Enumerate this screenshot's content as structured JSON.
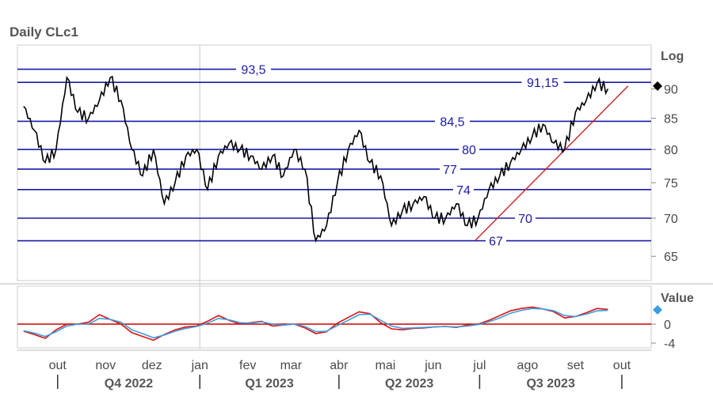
{
  "title": "Daily CLc1",
  "colors": {
    "price": "#000000",
    "level_line": "#1a1aa8",
    "trendline": "#cc2222",
    "osc_red": "#dd1111",
    "osc_blue": "#3a9de0",
    "zero_line": "#cc0000",
    "marker_price": "#000000",
    "marker_osc": "#3a9de0"
  },
  "chart_data": [
    {
      "type": "line",
      "scale": "log",
      "scale_label": "Log",
      "current_marker": 90.5,
      "ylim": [
        62,
        98
      ],
      "y_ticks": [
        "65",
        "70",
        "75",
        "80",
        "85",
        "90"
      ],
      "y_tick_values": [
        65,
        70,
        75,
        80,
        85,
        90
      ],
      "levels": [
        {
          "label": "93,5",
          "value": 93.5
        },
        {
          "label": "91,15",
          "value": 91.15
        },
        {
          "label": "84,5",
          "value": 84.5
        },
        {
          "label": "80",
          "value": 80
        },
        {
          "label": "77",
          "value": 77
        },
        {
          "label": "74",
          "value": 74
        },
        {
          "label": "70",
          "value": 70
        },
        {
          "label": "67",
          "value": 67
        }
      ],
      "trendline": [
        {
          "date": "2023-06-28",
          "value": 67
        },
        {
          "date": "2023-10-05",
          "value": 90.5
        }
      ],
      "series": [
        {
          "dates": [
            "2022-09-09",
            "2022-09-16",
            "2022-09-23",
            "2022-09-30",
            "2022-10-07",
            "2022-10-14",
            "2022-10-21",
            "2022-10-28",
            "2022-11-04",
            "2022-11-11",
            "2022-11-18",
            "2022-11-25",
            "2022-12-02",
            "2022-12-09",
            "2022-12-16",
            "2022-12-23",
            "2022-12-30",
            "2023-01-06",
            "2023-01-13",
            "2023-01-20",
            "2023-01-27",
            "2023-02-03",
            "2023-02-10",
            "2023-02-17",
            "2023-02-24",
            "2023-03-03",
            "2023-03-10",
            "2023-03-17",
            "2023-03-24",
            "2023-03-31",
            "2023-04-07",
            "2023-04-14",
            "2023-04-21",
            "2023-04-28",
            "2023-05-05",
            "2023-05-12",
            "2023-05-19",
            "2023-05-26",
            "2023-06-02",
            "2023-06-09",
            "2023-06-16",
            "2023-06-23",
            "2023-06-30",
            "2023-07-07",
            "2023-07-14",
            "2023-07-21",
            "2023-07-28",
            "2023-08-04",
            "2023-08-11",
            "2023-08-18",
            "2023-08-25",
            "2023-09-01",
            "2023-09-08",
            "2023-09-15",
            "2023-09-22"
          ],
          "values": [
            87,
            83,
            78,
            80,
            92,
            86,
            85,
            88,
            92,
            88,
            80,
            76,
            80,
            72,
            75,
            79,
            80,
            74,
            79,
            81,
            80,
            79,
            77,
            79,
            76,
            80,
            77,
            67,
            69,
            75,
            80,
            83,
            78,
            76,
            69,
            71,
            72,
            73,
            70,
            70,
            72,
            69,
            70,
            74,
            76,
            78,
            80,
            82,
            84,
            81,
            80,
            86,
            88,
            91,
            90
          ]
        }
      ]
    },
    {
      "type": "line",
      "scale_label": "Value",
      "ylim": [
        -5,
        8
      ],
      "y_ticks": [
        "0",
        "-4"
      ],
      "y_tick_values": [
        0,
        -4
      ],
      "zero_line": 0,
      "current_marker": 3,
      "series": [
        {
          "values": [
            -1.5,
            -2.2,
            -3,
            -1.2,
            0,
            0,
            0.4,
            2,
            1,
            0,
            -1.8,
            -2.6,
            -3.4,
            -2.2,
            -1.2,
            -0.6,
            -0.4,
            0.6,
            1.8,
            0.8,
            0,
            0.3,
            0.6,
            -0.4,
            -0.2,
            0,
            -0.8,
            -2,
            -1.6,
            0.2,
            1.4,
            2.6,
            2.2,
            0.3,
            -1,
            -1.2,
            -0.9,
            -0.8,
            -0.6,
            -0.5,
            -0.7,
            -0.2,
            0,
            0.8,
            1.8,
            2.8,
            3.3,
            3.6,
            3.2,
            2.6,
            1.3,
            1.6,
            2.4,
            3.3,
            3.1
          ]
        },
        {
          "values": [
            -1.4,
            -1.9,
            -2.6,
            -1.6,
            -0.4,
            0,
            0,
            1.2,
            1,
            0.4,
            -1.2,
            -2,
            -2.9,
            -2.3,
            -1.5,
            -0.9,
            -0.5,
            0.2,
            1.2,
            0.9,
            0.3,
            0.2,
            0.5,
            0,
            -0.2,
            0,
            -0.5,
            -1.6,
            -1.5,
            -0.3,
            0.8,
            2,
            2.1,
            0.8,
            -0.4,
            -0.9,
            -0.8,
            -0.7,
            -0.6,
            -0.5,
            -0.6,
            -0.4,
            -0.1,
            0.5,
            1.3,
            2.3,
            2.9,
            3.3,
            3.2,
            2.8,
            1.8,
            1.6,
            2.1,
            2.8,
            2.9
          ]
        }
      ]
    }
  ],
  "x_axis": {
    "months": [
      {
        "label": "out",
        "date": "2022-10-01"
      },
      {
        "label": "nov",
        "date": "2022-11-01"
      },
      {
        "label": "dez",
        "date": "2022-12-01"
      },
      {
        "label": "jan",
        "date": "2023-01-01"
      },
      {
        "label": "fev",
        "date": "2023-02-01"
      },
      {
        "label": "mar",
        "date": "2023-03-01"
      },
      {
        "label": "abr",
        "date": "2023-04-01"
      },
      {
        "label": "mai",
        "date": "2023-05-01"
      },
      {
        "label": "jun",
        "date": "2023-06-01"
      },
      {
        "label": "jul",
        "date": "2023-07-01"
      },
      {
        "label": "ago",
        "date": "2023-08-01"
      },
      {
        "label": "set",
        "date": "2023-09-01"
      },
      {
        "label": "out",
        "date": "2023-10-01"
      }
    ],
    "quarters": [
      {
        "label": "Q4 2022",
        "start": "2022-10-01",
        "end": "2023-01-01"
      },
      {
        "label": "Q1 2023",
        "start": "2023-01-01",
        "end": "2023-04-01"
      },
      {
        "label": "Q2 2023",
        "start": "2023-04-01",
        "end": "2023-07-01"
      },
      {
        "label": "Q3 2023",
        "start": "2023-07-01",
        "end": "2023-10-01"
      }
    ]
  }
}
